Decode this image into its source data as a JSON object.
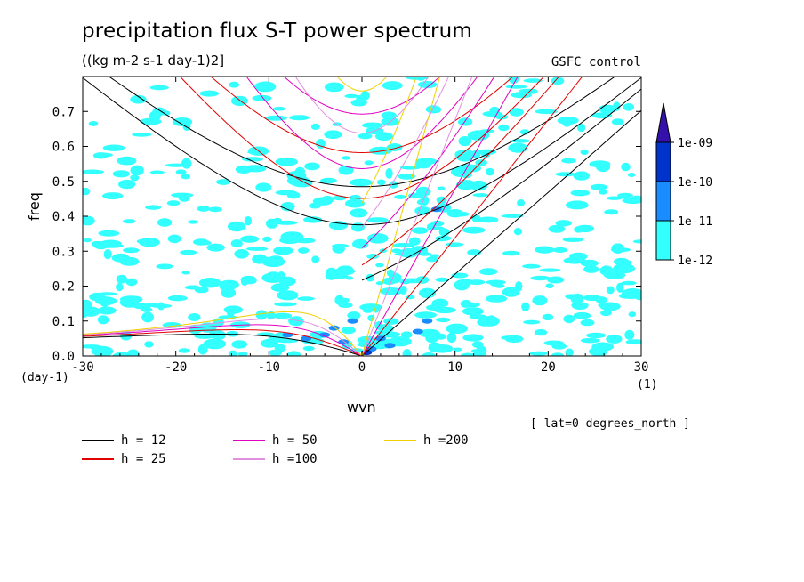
{
  "chart_data": {
    "type": "heatmap",
    "title": "precipitation flux S-T power spectrum",
    "subtitle": "((kg m-2 s-1 day-1)2]",
    "case_label": "GSFC_control",
    "xlabel": "wvn",
    "ylabel": "freq",
    "x_unit": "(1)",
    "y_unit": "(day-1)",
    "annotation": "[ lat=0 degrees_north ]",
    "xlim": [
      -30,
      30
    ],
    "ylim": [
      0,
      0.8
    ],
    "x_ticks": [
      -30,
      -20,
      -10,
      0,
      10,
      20,
      30
    ],
    "y_ticks": [
      0.0,
      0.1,
      0.2,
      0.3,
      0.4,
      0.5,
      0.6,
      0.7
    ],
    "x_tick_labels": [
      "-30",
      "-20",
      "-10",
      "0",
      "10",
      "20",
      "30"
    ],
    "y_tick_labels": [
      "0.0",
      "0.1",
      "0.2",
      "0.3",
      "0.4",
      "0.5",
      "0.6",
      "0.7"
    ],
    "colorbar": {
      "levels": [
        "1e-12",
        "1e-11",
        "1e-10",
        "1e-09"
      ],
      "colors": [
        "#33ffff",
        "#1a8cff",
        "#0033cc",
        "#3311aa"
      ]
    },
    "series": [
      {
        "name": "h = 12",
        "color": "#000000",
        "h": 12
      },
      {
        "name": "h = 25",
        "color": "#e00000",
        "h": 25
      },
      {
        "name": "h = 50",
        "color": "#e000c0",
        "h": 50
      },
      {
        "name": "h =100",
        "color": "#e090e0",
        "h": 100
      },
      {
        "name": "h =200",
        "color": "#f0d000",
        "h": 200
      }
    ]
  }
}
